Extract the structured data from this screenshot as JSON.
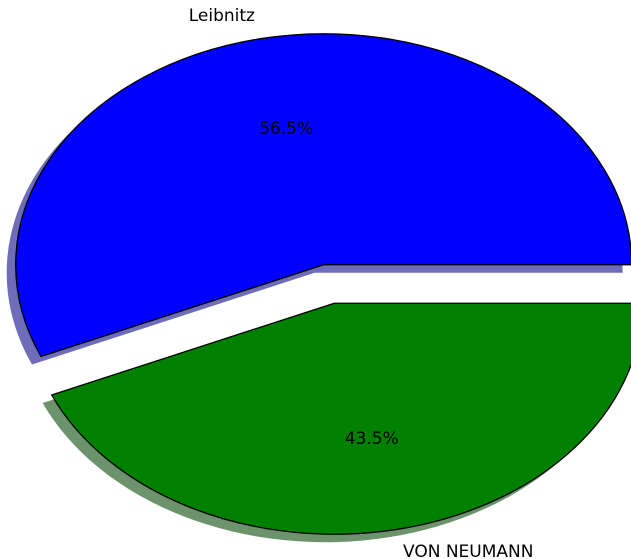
{
  "chart_data": {
    "type": "pie",
    "categories": [
      "Leibnitz",
      "VON NEUMANN"
    ],
    "values": [
      56.5,
      43.5
    ],
    "value_labels": [
      "56.5%",
      "43.5%"
    ],
    "colors": [
      "#0000ff",
      "#008000"
    ],
    "shadow": true
  }
}
